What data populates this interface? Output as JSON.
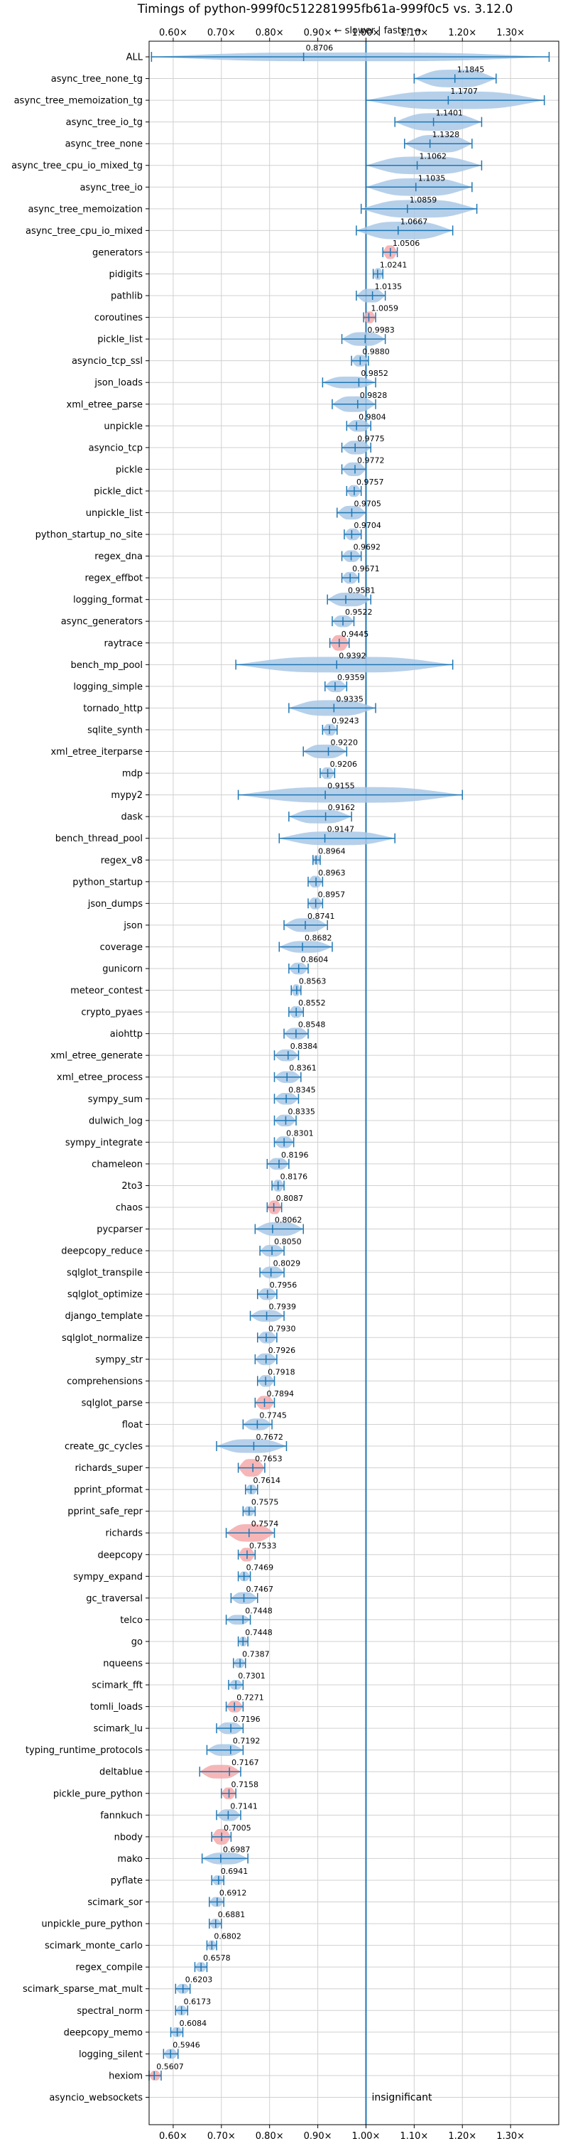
{
  "chart_data": {
    "type": "violin",
    "title": "Timings of python-999f0c512281995fb61a-999f0c5 vs. 3.12.0",
    "direction_label": "← slower | faster →",
    "xlim": [
      0.55,
      1.4
    ],
    "x_ticks": [
      0.6,
      0.7,
      0.8,
      0.9,
      1.0,
      1.1,
      1.2,
      1.3
    ],
    "x_tick_labels": [
      "0.60×",
      "0.70×",
      "0.80×",
      "0.90×",
      "1.00×",
      "1.10×",
      "1.20×",
      "1.30×"
    ],
    "reference_line": 1.0,
    "grid": true,
    "colors": {
      "normal": "#a9c8e6",
      "highlight": "#f4a9aa",
      "line": "#1f77b4",
      "ref": "#1f77b4"
    },
    "rows": [
      {
        "name": "ALL",
        "value": "0.8706",
        "median": 0.8706,
        "lo": 0.555,
        "hi": 1.38,
        "width": 0.45
      },
      {
        "name": "async_tree_none_tg",
        "value": "1.1845",
        "median": 1.1845,
        "lo": 1.1,
        "hi": 1.27,
        "width": 0.9
      },
      {
        "name": "async_tree_memoization_tg",
        "value": "1.1707",
        "median": 1.1707,
        "lo": 1.0,
        "hi": 1.37,
        "width": 0.9
      },
      {
        "name": "async_tree_io_tg",
        "value": "1.1401",
        "median": 1.1401,
        "lo": 1.06,
        "hi": 1.24,
        "width": 0.9
      },
      {
        "name": "async_tree_none",
        "value": "1.1328",
        "median": 1.1328,
        "lo": 1.08,
        "hi": 1.22,
        "width": 0.9
      },
      {
        "name": "async_tree_cpu_io_mixed_tg",
        "value": "1.1062",
        "median": 1.1062,
        "lo": 1.0,
        "hi": 1.24,
        "width": 0.9
      },
      {
        "name": "async_tree_io",
        "value": "1.1035",
        "median": 1.1035,
        "lo": 1.0,
        "hi": 1.22,
        "width": 0.9
      },
      {
        "name": "async_tree_memoization",
        "value": "1.0859",
        "median": 1.0859,
        "lo": 0.99,
        "hi": 1.23,
        "width": 0.9
      },
      {
        "name": "async_tree_cpu_io_mixed",
        "value": "1.0667",
        "median": 1.0667,
        "lo": 0.98,
        "hi": 1.18,
        "width": 0.9
      },
      {
        "name": "generators",
        "value": "1.0506",
        "median": 1.0506,
        "lo": 1.035,
        "hi": 1.065,
        "width": 0.7,
        "highlight": true
      },
      {
        "name": "pidigits",
        "value": "1.0241",
        "median": 1.0241,
        "lo": 1.015,
        "hi": 1.035,
        "width": 0.6
      },
      {
        "name": "pathlib",
        "value": "1.0135",
        "median": 1.0135,
        "lo": 0.98,
        "hi": 1.04,
        "width": 0.7
      },
      {
        "name": "coroutines",
        "value": "1.0059",
        "median": 1.0059,
        "lo": 0.995,
        "hi": 1.02,
        "width": 0.6,
        "highlight": true
      },
      {
        "name": "pickle_list",
        "value": "0.9983",
        "median": 0.9983,
        "lo": 0.95,
        "hi": 1.04,
        "width": 0.7
      },
      {
        "name": "asyncio_tcp_ssl",
        "value": "0.9880",
        "median": 0.988,
        "lo": 0.97,
        "hi": 1.005,
        "width": 0.6
      },
      {
        "name": "json_loads",
        "value": "0.9852",
        "median": 0.9852,
        "lo": 0.91,
        "hi": 1.02,
        "width": 0.6
      },
      {
        "name": "xml_etree_parse",
        "value": "0.9828",
        "median": 0.9828,
        "lo": 0.93,
        "hi": 1.02,
        "width": 0.8
      },
      {
        "name": "unpickle",
        "value": "0.9804",
        "median": 0.9804,
        "lo": 0.96,
        "hi": 1.01,
        "width": 0.6
      },
      {
        "name": "asyncio_tcp",
        "value": "0.9775",
        "median": 0.9775,
        "lo": 0.95,
        "hi": 1.01,
        "width": 0.7
      },
      {
        "name": "pickle",
        "value": "0.9772",
        "median": 0.9772,
        "lo": 0.95,
        "hi": 1.0,
        "width": 0.7
      },
      {
        "name": "pickle_dict",
        "value": "0.9757",
        "median": 0.9757,
        "lo": 0.96,
        "hi": 0.99,
        "width": 0.6
      },
      {
        "name": "unpickle_list",
        "value": "0.9705",
        "median": 0.9705,
        "lo": 0.94,
        "hi": 1.0,
        "width": 0.7
      },
      {
        "name": "python_startup_no_site",
        "value": "0.9704",
        "median": 0.9704,
        "lo": 0.955,
        "hi": 0.99,
        "width": 0.6
      },
      {
        "name": "regex_dna",
        "value": "0.9692",
        "median": 0.9692,
        "lo": 0.95,
        "hi": 0.99,
        "width": 0.6
      },
      {
        "name": "regex_effbot",
        "value": "0.9671",
        "median": 0.9671,
        "lo": 0.95,
        "hi": 0.985,
        "width": 0.6
      },
      {
        "name": "logging_format",
        "value": "0.9581",
        "median": 0.9581,
        "lo": 0.92,
        "hi": 1.01,
        "width": 0.7
      },
      {
        "name": "async_generators",
        "value": "0.9522",
        "median": 0.9522,
        "lo": 0.93,
        "hi": 0.975,
        "width": 0.6
      },
      {
        "name": "raytrace",
        "value": "0.9445",
        "median": 0.9445,
        "lo": 0.925,
        "hi": 0.965,
        "width": 0.8,
        "highlight": true
      },
      {
        "name": "bench_mp_pool",
        "value": "0.9392",
        "median": 0.9392,
        "lo": 0.73,
        "hi": 1.18,
        "width": 0.8
      },
      {
        "name": "logging_simple",
        "value": "0.9359",
        "median": 0.9359,
        "lo": 0.915,
        "hi": 0.96,
        "width": 0.6
      },
      {
        "name": "tornado_http",
        "value": "0.9335",
        "median": 0.9335,
        "lo": 0.84,
        "hi": 1.02,
        "width": 0.8
      },
      {
        "name": "sqlite_synth",
        "value": "0.9243",
        "median": 0.9243,
        "lo": 0.91,
        "hi": 0.94,
        "width": 0.6
      },
      {
        "name": "xml_etree_iterparse",
        "value": "0.9220",
        "median": 0.922,
        "lo": 0.87,
        "hi": 0.96,
        "width": 0.7
      },
      {
        "name": "mdp",
        "value": "0.9206",
        "median": 0.9206,
        "lo": 0.905,
        "hi": 0.935,
        "width": 0.6
      },
      {
        "name": "mypy2",
        "value": "0.9155",
        "median": 0.9155,
        "lo": 0.735,
        "hi": 1.2,
        "width": 0.8
      },
      {
        "name": "dask",
        "value": "0.9162",
        "median": 0.9162,
        "lo": 0.84,
        "hi": 0.97,
        "width": 0.7
      },
      {
        "name": "bench_thread_pool",
        "value": "0.9147",
        "median": 0.9147,
        "lo": 0.82,
        "hi": 1.06,
        "width": 0.7
      },
      {
        "name": "regex_v8",
        "value": "0.8964",
        "median": 0.8964,
        "lo": 0.89,
        "hi": 0.905,
        "width": 0.5
      },
      {
        "name": "python_startup",
        "value": "0.8963",
        "median": 0.8963,
        "lo": 0.88,
        "hi": 0.91,
        "width": 0.6
      },
      {
        "name": "json_dumps",
        "value": "0.8957",
        "median": 0.8957,
        "lo": 0.88,
        "hi": 0.91,
        "width": 0.6
      },
      {
        "name": "json",
        "value": "0.8741",
        "median": 0.8741,
        "lo": 0.83,
        "hi": 0.92,
        "width": 0.7
      },
      {
        "name": "coverage",
        "value": "0.8682",
        "median": 0.8682,
        "lo": 0.82,
        "hi": 0.93,
        "width": 0.6
      },
      {
        "name": "gunicorn",
        "value": "0.8604",
        "median": 0.8604,
        "lo": 0.84,
        "hi": 0.88,
        "width": 0.6
      },
      {
        "name": "meteor_contest",
        "value": "0.8563",
        "median": 0.8563,
        "lo": 0.845,
        "hi": 0.865,
        "width": 0.6
      },
      {
        "name": "crypto_pyaes",
        "value": "0.8552",
        "median": 0.8552,
        "lo": 0.84,
        "hi": 0.87,
        "width": 0.6
      },
      {
        "name": "aiohttp",
        "value": "0.8548",
        "median": 0.8548,
        "lo": 0.83,
        "hi": 0.88,
        "width": 0.6
      },
      {
        "name": "xml_etree_generate",
        "value": "0.8384",
        "median": 0.8384,
        "lo": 0.81,
        "hi": 0.86,
        "width": 0.6
      },
      {
        "name": "xml_etree_process",
        "value": "0.8361",
        "median": 0.8361,
        "lo": 0.81,
        "hi": 0.865,
        "width": 0.6
      },
      {
        "name": "sympy_sum",
        "value": "0.8345",
        "median": 0.8345,
        "lo": 0.81,
        "hi": 0.86,
        "width": 0.6
      },
      {
        "name": "dulwich_log",
        "value": "0.8335",
        "median": 0.8335,
        "lo": 0.81,
        "hi": 0.855,
        "width": 0.6
      },
      {
        "name": "sympy_integrate",
        "value": "0.8301",
        "median": 0.8301,
        "lo": 0.81,
        "hi": 0.85,
        "width": 0.6
      },
      {
        "name": "chameleon",
        "value": "0.8196",
        "median": 0.8196,
        "lo": 0.795,
        "hi": 0.84,
        "width": 0.6
      },
      {
        "name": "2to3",
        "value": "0.8176",
        "median": 0.8176,
        "lo": 0.805,
        "hi": 0.83,
        "width": 0.6
      },
      {
        "name": "chaos",
        "value": "0.8087",
        "median": 0.8087,
        "lo": 0.795,
        "hi": 0.825,
        "width": 0.7,
        "highlight": true
      },
      {
        "name": "pycparser",
        "value": "0.8062",
        "median": 0.8062,
        "lo": 0.77,
        "hi": 0.87,
        "width": 0.7
      },
      {
        "name": "deepcopy_reduce",
        "value": "0.8050",
        "median": 0.805,
        "lo": 0.78,
        "hi": 0.83,
        "width": 0.6
      },
      {
        "name": "sqlglot_transpile",
        "value": "0.8029",
        "median": 0.8029,
        "lo": 0.78,
        "hi": 0.83,
        "width": 0.6
      },
      {
        "name": "sqlglot_optimize",
        "value": "0.7956",
        "median": 0.7956,
        "lo": 0.775,
        "hi": 0.815,
        "width": 0.6
      },
      {
        "name": "django_template",
        "value": "0.7939",
        "median": 0.7939,
        "lo": 0.76,
        "hi": 0.83,
        "width": 0.6
      },
      {
        "name": "sqlglot_normalize",
        "value": "0.7930",
        "median": 0.793,
        "lo": 0.775,
        "hi": 0.815,
        "width": 0.6
      },
      {
        "name": "sympy_str",
        "value": "0.7926",
        "median": 0.7926,
        "lo": 0.77,
        "hi": 0.815,
        "width": 0.6
      },
      {
        "name": "comprehensions",
        "value": "0.7918",
        "median": 0.7918,
        "lo": 0.775,
        "hi": 0.81,
        "width": 0.6
      },
      {
        "name": "sqlglot_parse",
        "value": "0.7894",
        "median": 0.7894,
        "lo": 0.77,
        "hi": 0.81,
        "width": 0.7,
        "highlight": true
      },
      {
        "name": "float",
        "value": "0.7745",
        "median": 0.7745,
        "lo": 0.745,
        "hi": 0.805,
        "width": 0.6
      },
      {
        "name": "create_gc_cycles",
        "value": "0.7672",
        "median": 0.7672,
        "lo": 0.69,
        "hi": 0.835,
        "width": 0.7
      },
      {
        "name": "richards_super",
        "value": "0.7653",
        "median": 0.7653,
        "lo": 0.735,
        "hi": 0.79,
        "width": 0.9,
        "highlight": true
      },
      {
        "name": "pprint_pformat",
        "value": "0.7614",
        "median": 0.7614,
        "lo": 0.75,
        "hi": 0.775,
        "width": 0.5
      },
      {
        "name": "pprint_safe_repr",
        "value": "0.7575",
        "median": 0.7575,
        "lo": 0.745,
        "hi": 0.77,
        "width": 0.5
      },
      {
        "name": "richards",
        "value": "0.7574",
        "median": 0.7574,
        "lo": 0.71,
        "hi": 0.81,
        "width": 0.9,
        "highlight": true
      },
      {
        "name": "deepcopy",
        "value": "0.7533",
        "median": 0.7533,
        "lo": 0.735,
        "hi": 0.77,
        "width": 0.7,
        "highlight": true
      },
      {
        "name": "sympy_expand",
        "value": "0.7469",
        "median": 0.7469,
        "lo": 0.735,
        "hi": 0.76,
        "width": 0.5
      },
      {
        "name": "gc_traversal",
        "value": "0.7467",
        "median": 0.7467,
        "lo": 0.72,
        "hi": 0.775,
        "width": 0.6
      },
      {
        "name": "telco",
        "value": "0.7448",
        "median": 0.7448,
        "lo": 0.71,
        "hi": 0.76,
        "width": 0.5
      },
      {
        "name": "go",
        "value": "0.7448",
        "median": 0.7448,
        "lo": 0.735,
        "hi": 0.755,
        "width": 0.5
      },
      {
        "name": "nqueens",
        "value": "0.7387",
        "median": 0.7387,
        "lo": 0.725,
        "hi": 0.75,
        "width": 0.5
      },
      {
        "name": "scimark_fft",
        "value": "0.7301",
        "median": 0.7301,
        "lo": 0.715,
        "hi": 0.745,
        "width": 0.5
      },
      {
        "name": "tomli_loads",
        "value": "0.7271",
        "median": 0.7271,
        "lo": 0.71,
        "hi": 0.745,
        "width": 0.6,
        "highlight": true
      },
      {
        "name": "scimark_lu",
        "value": "0.7196",
        "median": 0.7196,
        "lo": 0.69,
        "hi": 0.745,
        "width": 0.6
      },
      {
        "name": "typing_runtime_protocols",
        "value": "0.7192",
        "median": 0.7192,
        "lo": 0.67,
        "hi": 0.745,
        "width": 0.6
      },
      {
        "name": "deltablue",
        "value": "0.7167",
        "median": 0.7167,
        "lo": 0.655,
        "hi": 0.74,
        "width": 0.7,
        "highlight": true
      },
      {
        "name": "pickle_pure_python",
        "value": "0.7158",
        "median": 0.7158,
        "lo": 0.7,
        "hi": 0.73,
        "width": 0.6,
        "highlight": true
      },
      {
        "name": "fannkuch",
        "value": "0.7141",
        "median": 0.7141,
        "lo": 0.69,
        "hi": 0.74,
        "width": 0.6
      },
      {
        "name": "nbody",
        "value": "0.7005",
        "median": 0.7005,
        "lo": 0.68,
        "hi": 0.72,
        "width": 0.8,
        "highlight": true
      },
      {
        "name": "mako",
        "value": "0.6987",
        "median": 0.6987,
        "lo": 0.66,
        "hi": 0.755,
        "width": 0.6
      },
      {
        "name": "pyflate",
        "value": "0.6941",
        "median": 0.6941,
        "lo": 0.68,
        "hi": 0.705,
        "width": 0.5
      },
      {
        "name": "scimark_sor",
        "value": "0.6912",
        "median": 0.6912,
        "lo": 0.675,
        "hi": 0.705,
        "width": 0.5
      },
      {
        "name": "unpickle_pure_python",
        "value": "0.6881",
        "median": 0.6881,
        "lo": 0.675,
        "hi": 0.7,
        "width": 0.5
      },
      {
        "name": "scimark_monte_carlo",
        "value": "0.6802",
        "median": 0.6802,
        "lo": 0.67,
        "hi": 0.69,
        "width": 0.5
      },
      {
        "name": "regex_compile",
        "value": "0.6578",
        "median": 0.6578,
        "lo": 0.645,
        "hi": 0.67,
        "width": 0.5
      },
      {
        "name": "scimark_sparse_mat_mult",
        "value": "0.6203",
        "median": 0.6203,
        "lo": 0.605,
        "hi": 0.635,
        "width": 0.5
      },
      {
        "name": "spectral_norm",
        "value": "0.6173",
        "median": 0.6173,
        "lo": 0.605,
        "hi": 0.63,
        "width": 0.5
      },
      {
        "name": "deepcopy_memo",
        "value": "0.6084",
        "median": 0.6084,
        "lo": 0.595,
        "hi": 0.62,
        "width": 0.5
      },
      {
        "name": "logging_silent",
        "value": "0.5946",
        "median": 0.5946,
        "lo": 0.58,
        "hi": 0.61,
        "width": 0.5
      },
      {
        "name": "hexiom",
        "value": "0.5607",
        "median": 0.5607,
        "lo": 0.55,
        "hi": 0.575,
        "width": 0.5,
        "highlight": true
      },
      {
        "name": "asyncio_websockets",
        "value": "insignificant",
        "insignificant": true
      }
    ]
  }
}
